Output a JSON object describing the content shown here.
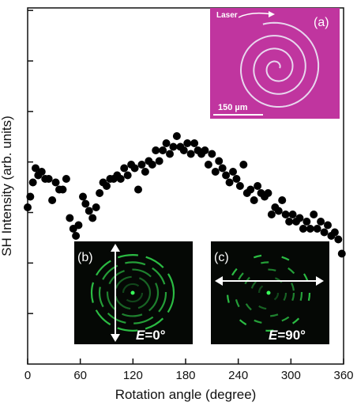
{
  "chart_data": {
    "type": "scatter",
    "xlabel": "Rotation angle (degree)",
    "ylabel": "SH Intensity (arb. units)",
    "xlim": [
      0,
      360
    ],
    "ylim": [
      0,
      100
    ],
    "x_ticks": [
      "0",
      "60",
      "120",
      "180",
      "240",
      "300",
      "360"
    ],
    "y_ticks_labeled": false,
    "grid": false,
    "marker_color": "#000000",
    "points": [
      {
        "x": 0,
        "y": 44
      },
      {
        "x": 3,
        "y": 47
      },
      {
        "x": 6,
        "y": 51
      },
      {
        "x": 9,
        "y": 55
      },
      {
        "x": 12,
        "y": 53
      },
      {
        "x": 16,
        "y": 54
      },
      {
        "x": 20,
        "y": 52
      },
      {
        "x": 24,
        "y": 52
      },
      {
        "x": 28,
        "y": 46
      },
      {
        "x": 32,
        "y": 51
      },
      {
        "x": 36,
        "y": 49
      },
      {
        "x": 40,
        "y": 49
      },
      {
        "x": 44,
        "y": 52
      },
      {
        "x": 48,
        "y": 41
      },
      {
        "x": 52,
        "y": 38
      },
      {
        "x": 55,
        "y": 36
      },
      {
        "x": 58,
        "y": 39
      },
      {
        "x": 63,
        "y": 47
      },
      {
        "x": 66,
        "y": 45
      },
      {
        "x": 70,
        "y": 43
      },
      {
        "x": 74,
        "y": 41
      },
      {
        "x": 78,
        "y": 44
      },
      {
        "x": 82,
        "y": 48
      },
      {
        "x": 86,
        "y": 51
      },
      {
        "x": 90,
        "y": 50
      },
      {
        "x": 94,
        "y": 52
      },
      {
        "x": 98,
        "y": 52
      },
      {
        "x": 102,
        "y": 53
      },
      {
        "x": 106,
        "y": 52
      },
      {
        "x": 110,
        "y": 55
      },
      {
        "x": 114,
        "y": 53
      },
      {
        "x": 118,
        "y": 56
      },
      {
        "x": 122,
        "y": 55
      },
      {
        "x": 126,
        "y": 49
      },
      {
        "x": 130,
        "y": 56
      },
      {
        "x": 134,
        "y": 54
      },
      {
        "x": 138,
        "y": 57
      },
      {
        "x": 142,
        "y": 56
      },
      {
        "x": 146,
        "y": 60
      },
      {
        "x": 150,
        "y": 57
      },
      {
        "x": 154,
        "y": 60
      },
      {
        "x": 158,
        "y": 62
      },
      {
        "x": 162,
        "y": 59
      },
      {
        "x": 166,
        "y": 61
      },
      {
        "x": 170,
        "y": 64
      },
      {
        "x": 174,
        "y": 61
      },
      {
        "x": 178,
        "y": 60
      },
      {
        "x": 182,
        "y": 62
      },
      {
        "x": 186,
        "y": 59
      },
      {
        "x": 190,
        "y": 62
      },
      {
        "x": 194,
        "y": 60
      },
      {
        "x": 198,
        "y": 59
      },
      {
        "x": 202,
        "y": 60
      },
      {
        "x": 206,
        "y": 56
      },
      {
        "x": 210,
        "y": 59
      },
      {
        "x": 214,
        "y": 54
      },
      {
        "x": 218,
        "y": 57
      },
      {
        "x": 222,
        "y": 55
      },
      {
        "x": 226,
        "y": 53
      },
      {
        "x": 230,
        "y": 51
      },
      {
        "x": 234,
        "y": 54
      },
      {
        "x": 238,
        "y": 52
      },
      {
        "x": 242,
        "y": 50
      },
      {
        "x": 246,
        "y": 56
      },
      {
        "x": 250,
        "y": 48
      },
      {
        "x": 254,
        "y": 49
      },
      {
        "x": 258,
        "y": 46
      },
      {
        "x": 262,
        "y": 50
      },
      {
        "x": 266,
        "y": 48
      },
      {
        "x": 270,
        "y": 47
      },
      {
        "x": 274,
        "y": 48
      },
      {
        "x": 278,
        "y": 42
      },
      {
        "x": 282,
        "y": 44
      },
      {
        "x": 286,
        "y": 43
      },
      {
        "x": 290,
        "y": 46
      },
      {
        "x": 294,
        "y": 42
      },
      {
        "x": 298,
        "y": 40
      },
      {
        "x": 302,
        "y": 42
      },
      {
        "x": 306,
        "y": 40
      },
      {
        "x": 310,
        "y": 41
      },
      {
        "x": 314,
        "y": 38
      },
      {
        "x": 318,
        "y": 40
      },
      {
        "x": 322,
        "y": 38
      },
      {
        "x": 326,
        "y": 42
      },
      {
        "x": 330,
        "y": 38
      },
      {
        "x": 334,
        "y": 40
      },
      {
        "x": 338,
        "y": 37
      },
      {
        "x": 342,
        "y": 39
      },
      {
        "x": 346,
        "y": 36
      },
      {
        "x": 350,
        "y": 37
      },
      {
        "x": 354,
        "y": 35
      },
      {
        "x": 358,
        "y": 31
      }
    ],
    "insets": {
      "a": {
        "label": "(a)",
        "laser_text": "Laser",
        "scale_text": "150 µm",
        "background_color": "#c0359f"
      },
      "b": {
        "label": "(b)",
        "e_symbol": "E",
        "e_value": "=0°",
        "ring_color": "#39ff5a"
      },
      "c": {
        "label": "(c)",
        "e_symbol": "E",
        "e_value": "=90°",
        "ring_color": "#39ff5a"
      }
    }
  }
}
